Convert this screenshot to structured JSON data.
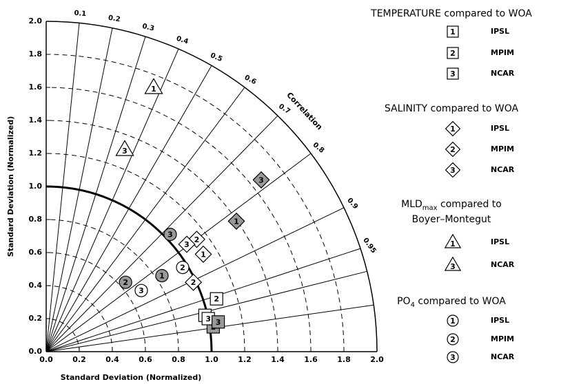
{
  "chart_data": {
    "type": "taylor",
    "x_label": "Standard Deviation (Normalized)",
    "y_label": "Standard Deviation (Normalized)",
    "correlation_label": "Correlation",
    "xlim": [
      0,
      2
    ],
    "ylim": [
      0,
      2
    ],
    "xticks": [
      {
        "value": 0,
        "label": "0.0"
      },
      0.2,
      0.4,
      0.6,
      0.8,
      {
        "value": 1,
        "label": "1.0"
      },
      1.2,
      1.4,
      1.6,
      1.8,
      {
        "value": 2,
        "label": "2.0"
      }
    ],
    "yticks": [
      {
        "value": 0,
        "label": "0.0"
      },
      0.2,
      0.4,
      0.6,
      0.8,
      {
        "value": 1,
        "label": "1.0"
      },
      1.2,
      1.4,
      1.6,
      1.8,
      {
        "value": 2,
        "label": "2.0"
      }
    ],
    "correlation_ticks": [
      0.1,
      0.2,
      0.3,
      0.4,
      0.5,
      0.6,
      0.7,
      0.8,
      0.9,
      0.95,
      {
        "value": 0.97,
        "label": null
      },
      {
        "value": 0.99,
        "label": null
      }
    ],
    "std_arcs": [
      0.2,
      0.4,
      0.6,
      0.8,
      1.2,
      1.4,
      1.6,
      1.8
    ],
    "reference_std": 1,
    "groups": [
      {
        "title_lines": [
          [
            {
              "text": "TEMPERATURE compared to WOA"
            }
          ]
        ],
        "marker": "square",
        "series": [
          {
            "name": "IPSL",
            "label": "1",
            "x": [
              0.96
            ],
            "y": [
              0.22
            ],
            "fills": [
              "#ffffff"
            ]
          },
          {
            "name": "MPIM",
            "label": "2",
            "x": [
              1.03,
              1.01
            ],
            "y": [
              0.32,
              0.15
            ],
            "fills": [
              "#ffffff",
              "#999999"
            ]
          },
          {
            "name": "NCAR",
            "label": "3",
            "x": [
              0.98,
              1.04
            ],
            "y": [
              0.2,
              0.18
            ],
            "fills": [
              "#ffffff",
              "#999999"
            ]
          }
        ]
      },
      {
        "title_lines": [
          [
            {
              "text": "SALINITY compared to WOA"
            }
          ]
        ],
        "marker": "diamond",
        "series": [
          {
            "name": "IPSL",
            "label": "1",
            "x": [
              0.95,
              1.15
            ],
            "y": [
              0.59,
              0.79
            ],
            "fills": [
              "#ffffff",
              "#999999"
            ]
          },
          {
            "name": "MPIM",
            "label": "2",
            "x": [
              0.91,
              0.89
            ],
            "y": [
              0.68,
              0.42
            ],
            "fills": [
              "#ffffff",
              "#ffffff"
            ]
          },
          {
            "name": "NCAR",
            "label": "3",
            "x": [
              0.85,
              1.3
            ],
            "y": [
              0.65,
              1.04
            ],
            "fills": [
              "#ffffff",
              "#999999"
            ]
          }
        ]
      },
      {
        "title_lines": [
          [
            {
              "text": "MLD"
            },
            {
              "text": "max",
              "sub": true
            },
            {
              "text": " compared to"
            }
          ],
          [
            {
              "text": "Boyer–Montegut"
            }
          ]
        ],
        "marker": "triangle",
        "series": [
          {
            "name": "IPSL",
            "label": "1",
            "x": [
              0.65
            ],
            "y": [
              1.6
            ],
            "fills": [
              "#ffffff"
            ]
          },
          {
            "name": "NCAR",
            "label": "3",
            "x": [
              0.475
            ],
            "y": [
              1.225
            ],
            "fills": [
              "#ffffff"
            ]
          }
        ]
      },
      {
        "title_lines": [
          [
            {
              "text": "PO"
            },
            {
              "text": "4",
              "sub": true
            },
            {
              "text": " compared to WOA"
            }
          ]
        ],
        "marker": "circle",
        "series": [
          {
            "name": "IPSL",
            "label": "1",
            "x": [
              0.7
            ],
            "y": [
              0.46
            ],
            "fills": [
              "#999999"
            ]
          },
          {
            "name": "MPIM",
            "label": "2",
            "x": [
              0.825,
              0.48
            ],
            "y": [
              0.51,
              0.42
            ],
            "fills": [
              "#ffffff",
              "#999999"
            ]
          },
          {
            "name": "NCAR",
            "label": "3",
            "x": [
              0.575,
              0.75
            ],
            "y": [
              0.37,
              0.71
            ],
            "fills": [
              "#ffffff",
              "#999999"
            ]
          }
        ]
      }
    ]
  }
}
